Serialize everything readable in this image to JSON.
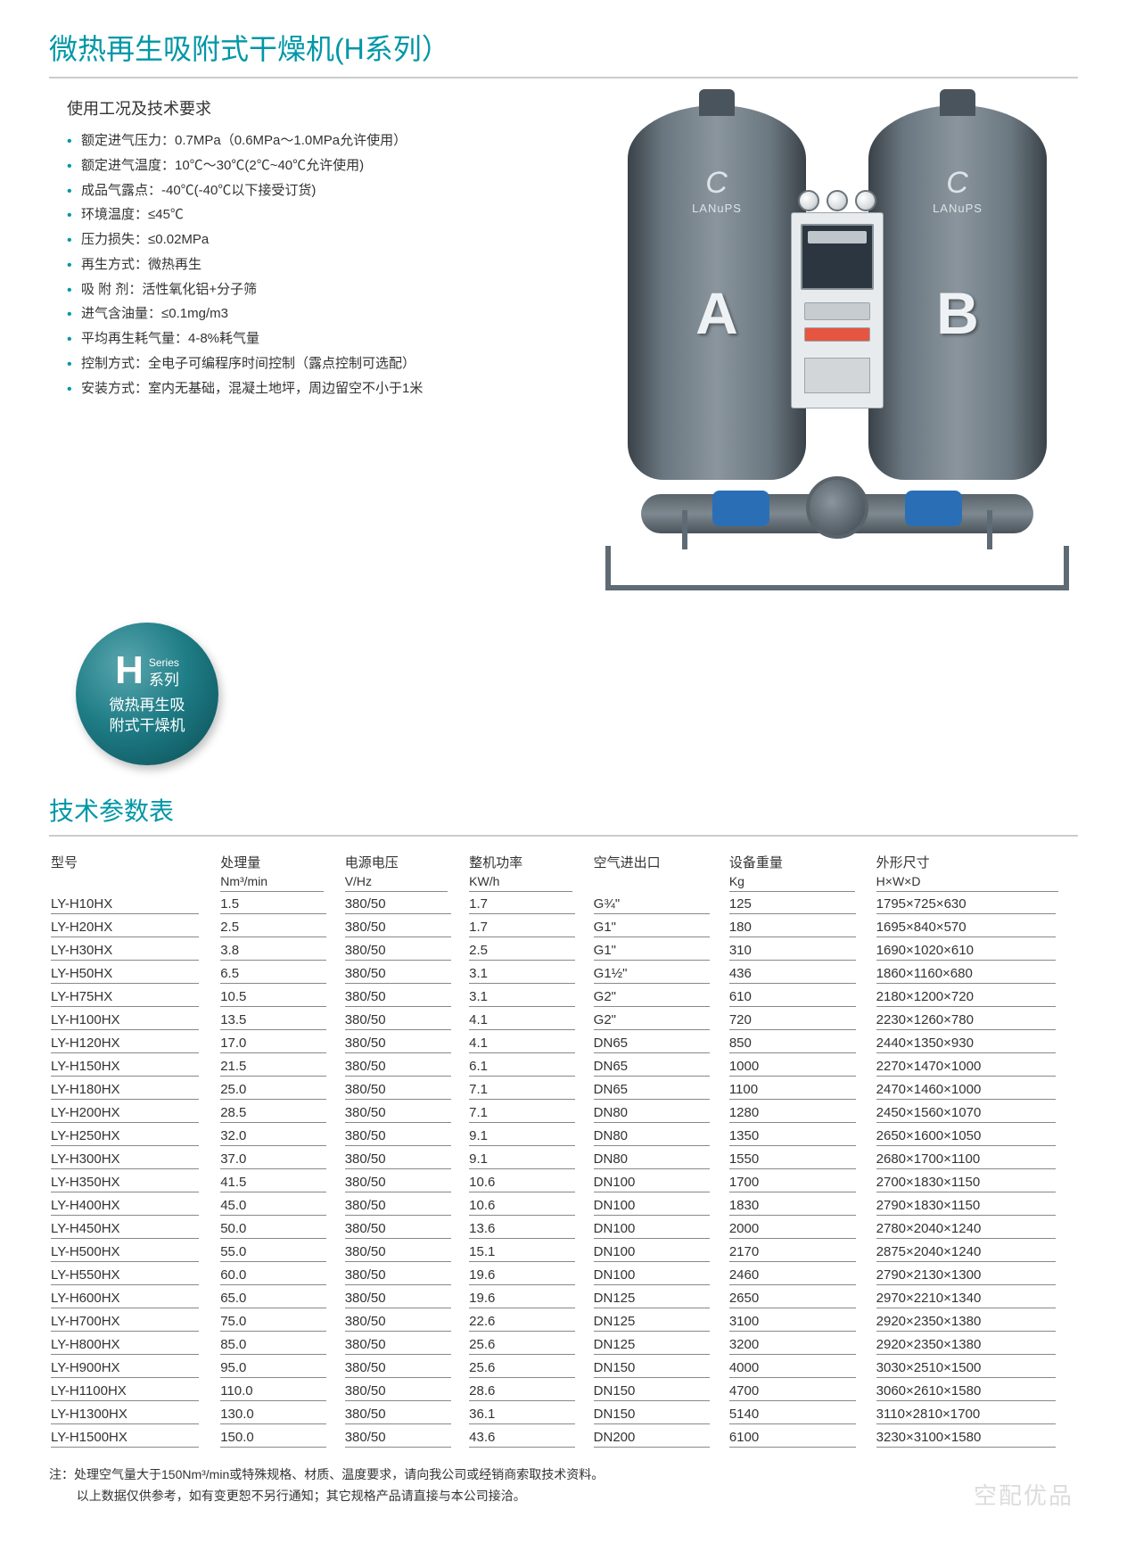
{
  "title": "微热再生吸附式干燥机(H系列）",
  "specs_heading": "使用工况及技术要求",
  "specs": [
    "额定进气压力：0.7MPa（0.6MPa～1.0MPa允许使用）",
    "额定进气温度：10℃～30℃(2℃~40℃允许使用)",
    "成品气露点：-40℃(-40℃以下接受订货)",
    "环境温度：≤45℃",
    "压力损失：≤0.02MPa",
    "再生方式：微热再生",
    "吸 附 剂：活性氧化铝+分子筛",
    "进气含油量：≤0.1mg/m3",
    "平均再生耗气量：4-8%耗气量",
    "控制方式：全电子可编程序时间控制（露点控制可选配）",
    "安装方式：室内无基础，混凝土地坪，周边留空不小于1米"
  ],
  "product": {
    "brand": "LANuPS",
    "tank_a": "A",
    "tank_b": "B"
  },
  "badge": {
    "H": "H",
    "series_en": "Series",
    "series_zh": "系列",
    "line1": "微热再生吸",
    "line2": "附式干燥机"
  },
  "table_title": "技术参数表",
  "columns": [
    {
      "label": "型号",
      "unit": ""
    },
    {
      "label": "处理量",
      "unit": "Nm³/min"
    },
    {
      "label": "电源电压",
      "unit": "V/Hz"
    },
    {
      "label": "整机功率",
      "unit": "KW/h"
    },
    {
      "label": "空气进出口",
      "unit": ""
    },
    {
      "label": "设备重量",
      "unit": "Kg"
    },
    {
      "label": "外形尺寸",
      "unit": "H×W×D"
    }
  ],
  "rows": [
    [
      "LY-H10HX",
      "1.5",
      "380/50",
      "1.7",
      "G¾\"",
      "125",
      "1795×725×630"
    ],
    [
      "LY-H20HX",
      "2.5",
      "380/50",
      "1.7",
      "G1\"",
      "180",
      "1695×840×570"
    ],
    [
      "LY-H30HX",
      "3.8",
      "380/50",
      "2.5",
      "G1\"",
      "310",
      "1690×1020×610"
    ],
    [
      "LY-H50HX",
      "6.5",
      "380/50",
      "3.1",
      "G1½\"",
      "436",
      "1860×1160×680"
    ],
    [
      "LY-H75HX",
      "10.5",
      "380/50",
      "3.1",
      "G2\"",
      "610",
      "2180×1200×720"
    ],
    [
      "LY-H100HX",
      "13.5",
      "380/50",
      "4.1",
      "G2\"",
      "720",
      "2230×1260×780"
    ],
    [
      "LY-H120HX",
      "17.0",
      "380/50",
      "4.1",
      "DN65",
      "850",
      "2440×1350×930"
    ],
    [
      "LY-H150HX",
      "21.5",
      "380/50",
      "6.1",
      "DN65",
      "1000",
      "2270×1470×1000"
    ],
    [
      "LY-H180HX",
      "25.0",
      "380/50",
      "7.1",
      "DN65",
      "1100",
      "2470×1460×1000"
    ],
    [
      "LY-H200HX",
      "28.5",
      "380/50",
      "7.1",
      "DN80",
      "1280",
      "2450×1560×1070"
    ],
    [
      "LY-H250HX",
      "32.0",
      "380/50",
      "9.1",
      "DN80",
      "1350",
      "2650×1600×1050"
    ],
    [
      "LY-H300HX",
      "37.0",
      "380/50",
      "9.1",
      "DN80",
      "1550",
      "2680×1700×1100"
    ],
    [
      "LY-H350HX",
      "41.5",
      "380/50",
      "10.6",
      "DN100",
      "1700",
      "2700×1830×1150"
    ],
    [
      "LY-H400HX",
      "45.0",
      "380/50",
      "10.6",
      "DN100",
      "1830",
      "2790×1830×1150"
    ],
    [
      "LY-H450HX",
      "50.0",
      "380/50",
      "13.6",
      "DN100",
      "2000",
      "2780×2040×1240"
    ],
    [
      "LY-H500HX",
      "55.0",
      "380/50",
      "15.1",
      "DN100",
      "2170",
      "2875×2040×1240"
    ],
    [
      "LY-H550HX",
      "60.0",
      "380/50",
      "19.6",
      "DN100",
      "2460",
      "2790×2130×1300"
    ],
    [
      "LY-H600HX",
      "65.0",
      "380/50",
      "19.6",
      "DN125",
      "2650",
      "2970×2210×1340"
    ],
    [
      "LY-H700HX",
      "75.0",
      "380/50",
      "22.6",
      "DN125",
      "3100",
      "2920×2350×1380"
    ],
    [
      "LY-H800HX",
      "85.0",
      "380/50",
      "25.6",
      "DN125",
      "3200",
      "2920×2350×1380"
    ],
    [
      "LY-H900HX",
      "95.0",
      "380/50",
      "25.6",
      "DN150",
      "4000",
      "3030×2510×1500"
    ],
    [
      "LY-H1100HX",
      "110.0",
      "380/50",
      "28.6",
      "DN150",
      "4700",
      "3060×2610×1580"
    ],
    [
      "LY-H1300HX",
      "130.0",
      "380/50",
      "36.1",
      "DN150",
      "5140",
      "3110×2810×1700"
    ],
    [
      "LY-H1500HX",
      "150.0",
      "380/50",
      "43.6",
      "DN200",
      "6100",
      "3230×3100×1580"
    ]
  ],
  "footnotes": {
    "prefix": "注：",
    "line1": "处理空气量大于150Nm³/min或特殊规格、材质、温度要求，请向我公司或经销商索取技术资料。",
    "line2": "以上数据仅供参考，如有变更恕不另行通知；其它规格产品请直接与本公司接洽。"
  },
  "watermark": "空配优品",
  "colors": {
    "accent": "#0097a7",
    "text": "#333333",
    "rule": "#888888",
    "badge_start": "#5aa6ae",
    "badge_end": "#0a4d55",
    "tank": "#6b7780",
    "valve_blue": "#2a6fb5"
  }
}
